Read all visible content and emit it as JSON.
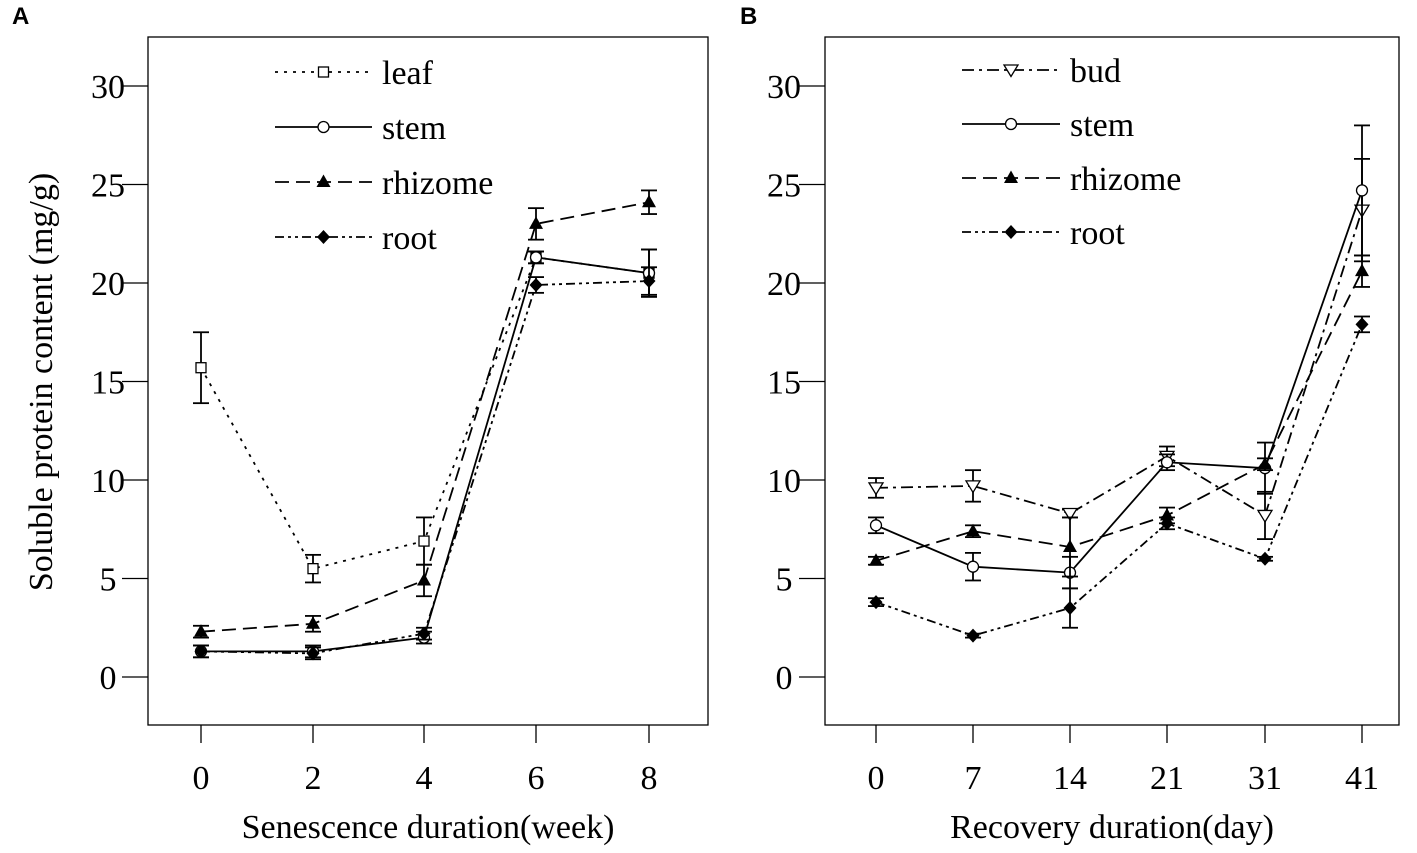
{
  "y_axis_title": "Soluble protein content (mg/g)",
  "chart_data": [
    {
      "panel_label": "A",
      "type": "line",
      "x": [
        0,
        2,
        4,
        6,
        8
      ],
      "x_tick_labels": [
        "0",
        "2",
        "4",
        "6",
        "8"
      ],
      "xlabel": "Senescence duration(week)",
      "ylabel": "Soluble protein content (mg/g)",
      "ylim": [
        -2.5,
        32.5
      ],
      "yticks": [
        0,
        5,
        10,
        15,
        20,
        25,
        30
      ],
      "legend_position": "top-left",
      "series": [
        {
          "name": "leaf",
          "style": "dotted",
          "marker": "square-open",
          "values": [
            15.7,
            5.5,
            6.9,
            21.3,
            20.5
          ],
          "errors": [
            1.8,
            0.7,
            1.2,
            0.3,
            1.2
          ]
        },
        {
          "name": "stem",
          "style": "solid",
          "marker": "circle-open",
          "values": [
            1.3,
            1.3,
            2.0,
            21.3,
            20.5
          ],
          "errors": [
            0.3,
            0.3,
            0.3,
            0.3,
            1.2
          ]
        },
        {
          "name": "rhizome",
          "style": "dashed",
          "marker": "triangle-filled",
          "values": [
            2.3,
            2.7,
            4.9,
            23.0,
            24.1
          ],
          "errors": [
            0.3,
            0.4,
            0.8,
            0.8,
            0.6
          ]
        },
        {
          "name": "root",
          "style": "dashdot2",
          "marker": "diamond-filled",
          "values": [
            1.3,
            1.2,
            2.2,
            19.9,
            20.1
          ],
          "errors": [
            0.3,
            0.3,
            0.3,
            0.4,
            0.7
          ]
        }
      ]
    },
    {
      "panel_label": "B",
      "type": "line",
      "x": [
        0,
        7,
        14,
        21,
        31,
        41
      ],
      "x_tick_labels": [
        "0",
        "7",
        "14",
        "21",
        "31",
        "41"
      ],
      "xlabel": "Recovery duration(day)",
      "ylabel": "",
      "ylim": [
        -2.5,
        32.5
      ],
      "yticks": [
        0,
        5,
        10,
        15,
        20,
        25,
        30
      ],
      "legend_position": "top-left",
      "series": [
        {
          "name": "bud",
          "style": "dashdot",
          "marker": "triangle-down-open",
          "values": [
            9.6,
            9.7,
            8.3,
            11.2,
            8.2,
            23.7
          ],
          "errors": [
            0.5,
            0.8,
            0.2,
            0.5,
            1.2,
            2.6
          ]
        },
        {
          "name": "stem",
          "style": "solid",
          "marker": "circle-open",
          "values": [
            7.7,
            5.6,
            5.3,
            10.9,
            10.6,
            24.7
          ],
          "errors": [
            0.4,
            0.7,
            0.8,
            0.4,
            1.3,
            3.3
          ]
        },
        {
          "name": "rhizome",
          "style": "dashed",
          "marker": "triangle-filled",
          "values": [
            5.9,
            7.4,
            6.6,
            8.2,
            10.8,
            20.6
          ],
          "errors": [
            0.2,
            0.3,
            1.5,
            0.4,
            0.3,
            0.8
          ]
        },
        {
          "name": "root",
          "style": "dashdot2",
          "marker": "diamond-filled",
          "values": [
            3.8,
            2.1,
            3.5,
            7.8,
            6.0,
            17.9
          ],
          "errors": [
            0.2,
            0.1,
            1.0,
            0.3,
            0.1,
            0.4
          ]
        }
      ]
    }
  ]
}
